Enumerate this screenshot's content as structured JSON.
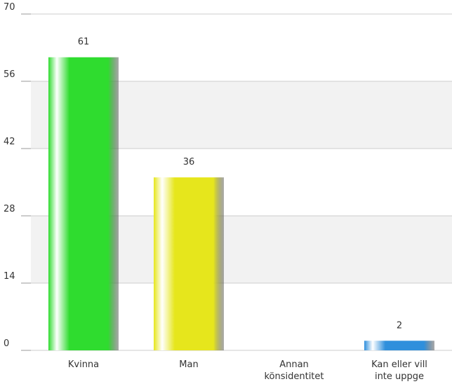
{
  "chart_data": {
    "type": "bar",
    "categories": [
      "Kvinna",
      "Man",
      "Annan könsidentitet",
      "Kan eller vill inte uppge"
    ],
    "values": [
      61,
      36,
      0,
      2
    ],
    "value_labels": [
      "61",
      "36",
      null,
      "2"
    ],
    "colors": [
      "#2fdc2f",
      "#e6e61c",
      null,
      "#2f8fdc"
    ],
    "ylim": [
      0,
      70
    ],
    "yticks": [
      0,
      14,
      28,
      42,
      56,
      70
    ],
    "grid": true
  }
}
